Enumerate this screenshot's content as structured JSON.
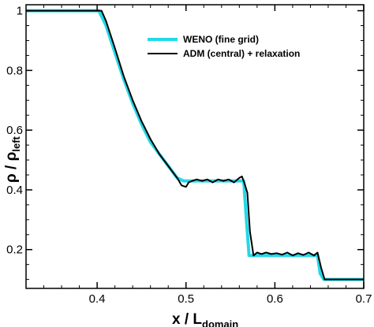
{
  "chart_data": {
    "type": "line",
    "xlabel": "x / L",
    "xlabel_sub": "domain",
    "ylabel": "ρ / ρ",
    "ylabel_sub": "left",
    "xlim": [
      0.32,
      0.7
    ],
    "ylim": [
      0.07,
      1.02
    ],
    "xticks": [
      0.4,
      0.5,
      0.6,
      0.7
    ],
    "xtick_labels": [
      "0.4",
      "0.5",
      "0.6",
      "0.7"
    ],
    "yticks": [
      0.2,
      0.4,
      0.6,
      0.8,
      1.0
    ],
    "ytick_labels": [
      "0.2",
      "0.4",
      "0.6",
      "0.8",
      "1"
    ],
    "legend_position": "top-right",
    "grid": false,
    "series": [
      {
        "name": "WENO (fine grid)",
        "color": "#22d8e8",
        "x": [
          0.32,
          0.4,
          0.402,
          0.41,
          0.42,
          0.43,
          0.44,
          0.45,
          0.46,
          0.47,
          0.48,
          0.49,
          0.497,
          0.5,
          0.505,
          0.51,
          0.52,
          0.53,
          0.54,
          0.55,
          0.56,
          0.565,
          0.568,
          0.571,
          0.575,
          0.58,
          0.59,
          0.6,
          0.61,
          0.62,
          0.63,
          0.64,
          0.648,
          0.651,
          0.655,
          0.66,
          0.7
        ],
        "y": [
          1.0,
          1.0,
          1.0,
          0.95,
          0.86,
          0.77,
          0.69,
          0.62,
          0.56,
          0.52,
          0.48,
          0.44,
          0.43,
          0.43,
          0.43,
          0.43,
          0.43,
          0.43,
          0.43,
          0.43,
          0.43,
          0.43,
          0.3,
          0.18,
          0.18,
          0.18,
          0.18,
          0.18,
          0.18,
          0.18,
          0.18,
          0.18,
          0.18,
          0.12,
          0.1,
          0.1,
          0.1
        ]
      },
      {
        "name": "ADM (central) + relaxation",
        "color": "#000000",
        "x": [
          0.32,
          0.39,
          0.4,
          0.405,
          0.41,
          0.42,
          0.43,
          0.44,
          0.45,
          0.46,
          0.47,
          0.48,
          0.49,
          0.495,
          0.5,
          0.503,
          0.507,
          0.512,
          0.518,
          0.524,
          0.53,
          0.536,
          0.542,
          0.548,
          0.554,
          0.56,
          0.563,
          0.566,
          0.569,
          0.572,
          0.576,
          0.58,
          0.585,
          0.59,
          0.596,
          0.602,
          0.608,
          0.614,
          0.62,
          0.626,
          0.632,
          0.638,
          0.644,
          0.648,
          0.652,
          0.656,
          0.66,
          0.7
        ],
        "y": [
          1.0,
          1.0,
          1.0,
          1.0,
          0.965,
          0.875,
          0.78,
          0.7,
          0.63,
          0.57,
          0.52,
          0.48,
          0.44,
          0.415,
          0.41,
          0.425,
          0.43,
          0.435,
          0.43,
          0.435,
          0.425,
          0.435,
          0.43,
          0.435,
          0.425,
          0.44,
          0.445,
          0.42,
          0.39,
          0.26,
          0.18,
          0.19,
          0.185,
          0.19,
          0.185,
          0.188,
          0.183,
          0.19,
          0.18,
          0.188,
          0.182,
          0.19,
          0.18,
          0.19,
          0.14,
          0.1,
          0.1,
          0.1
        ]
      }
    ]
  }
}
